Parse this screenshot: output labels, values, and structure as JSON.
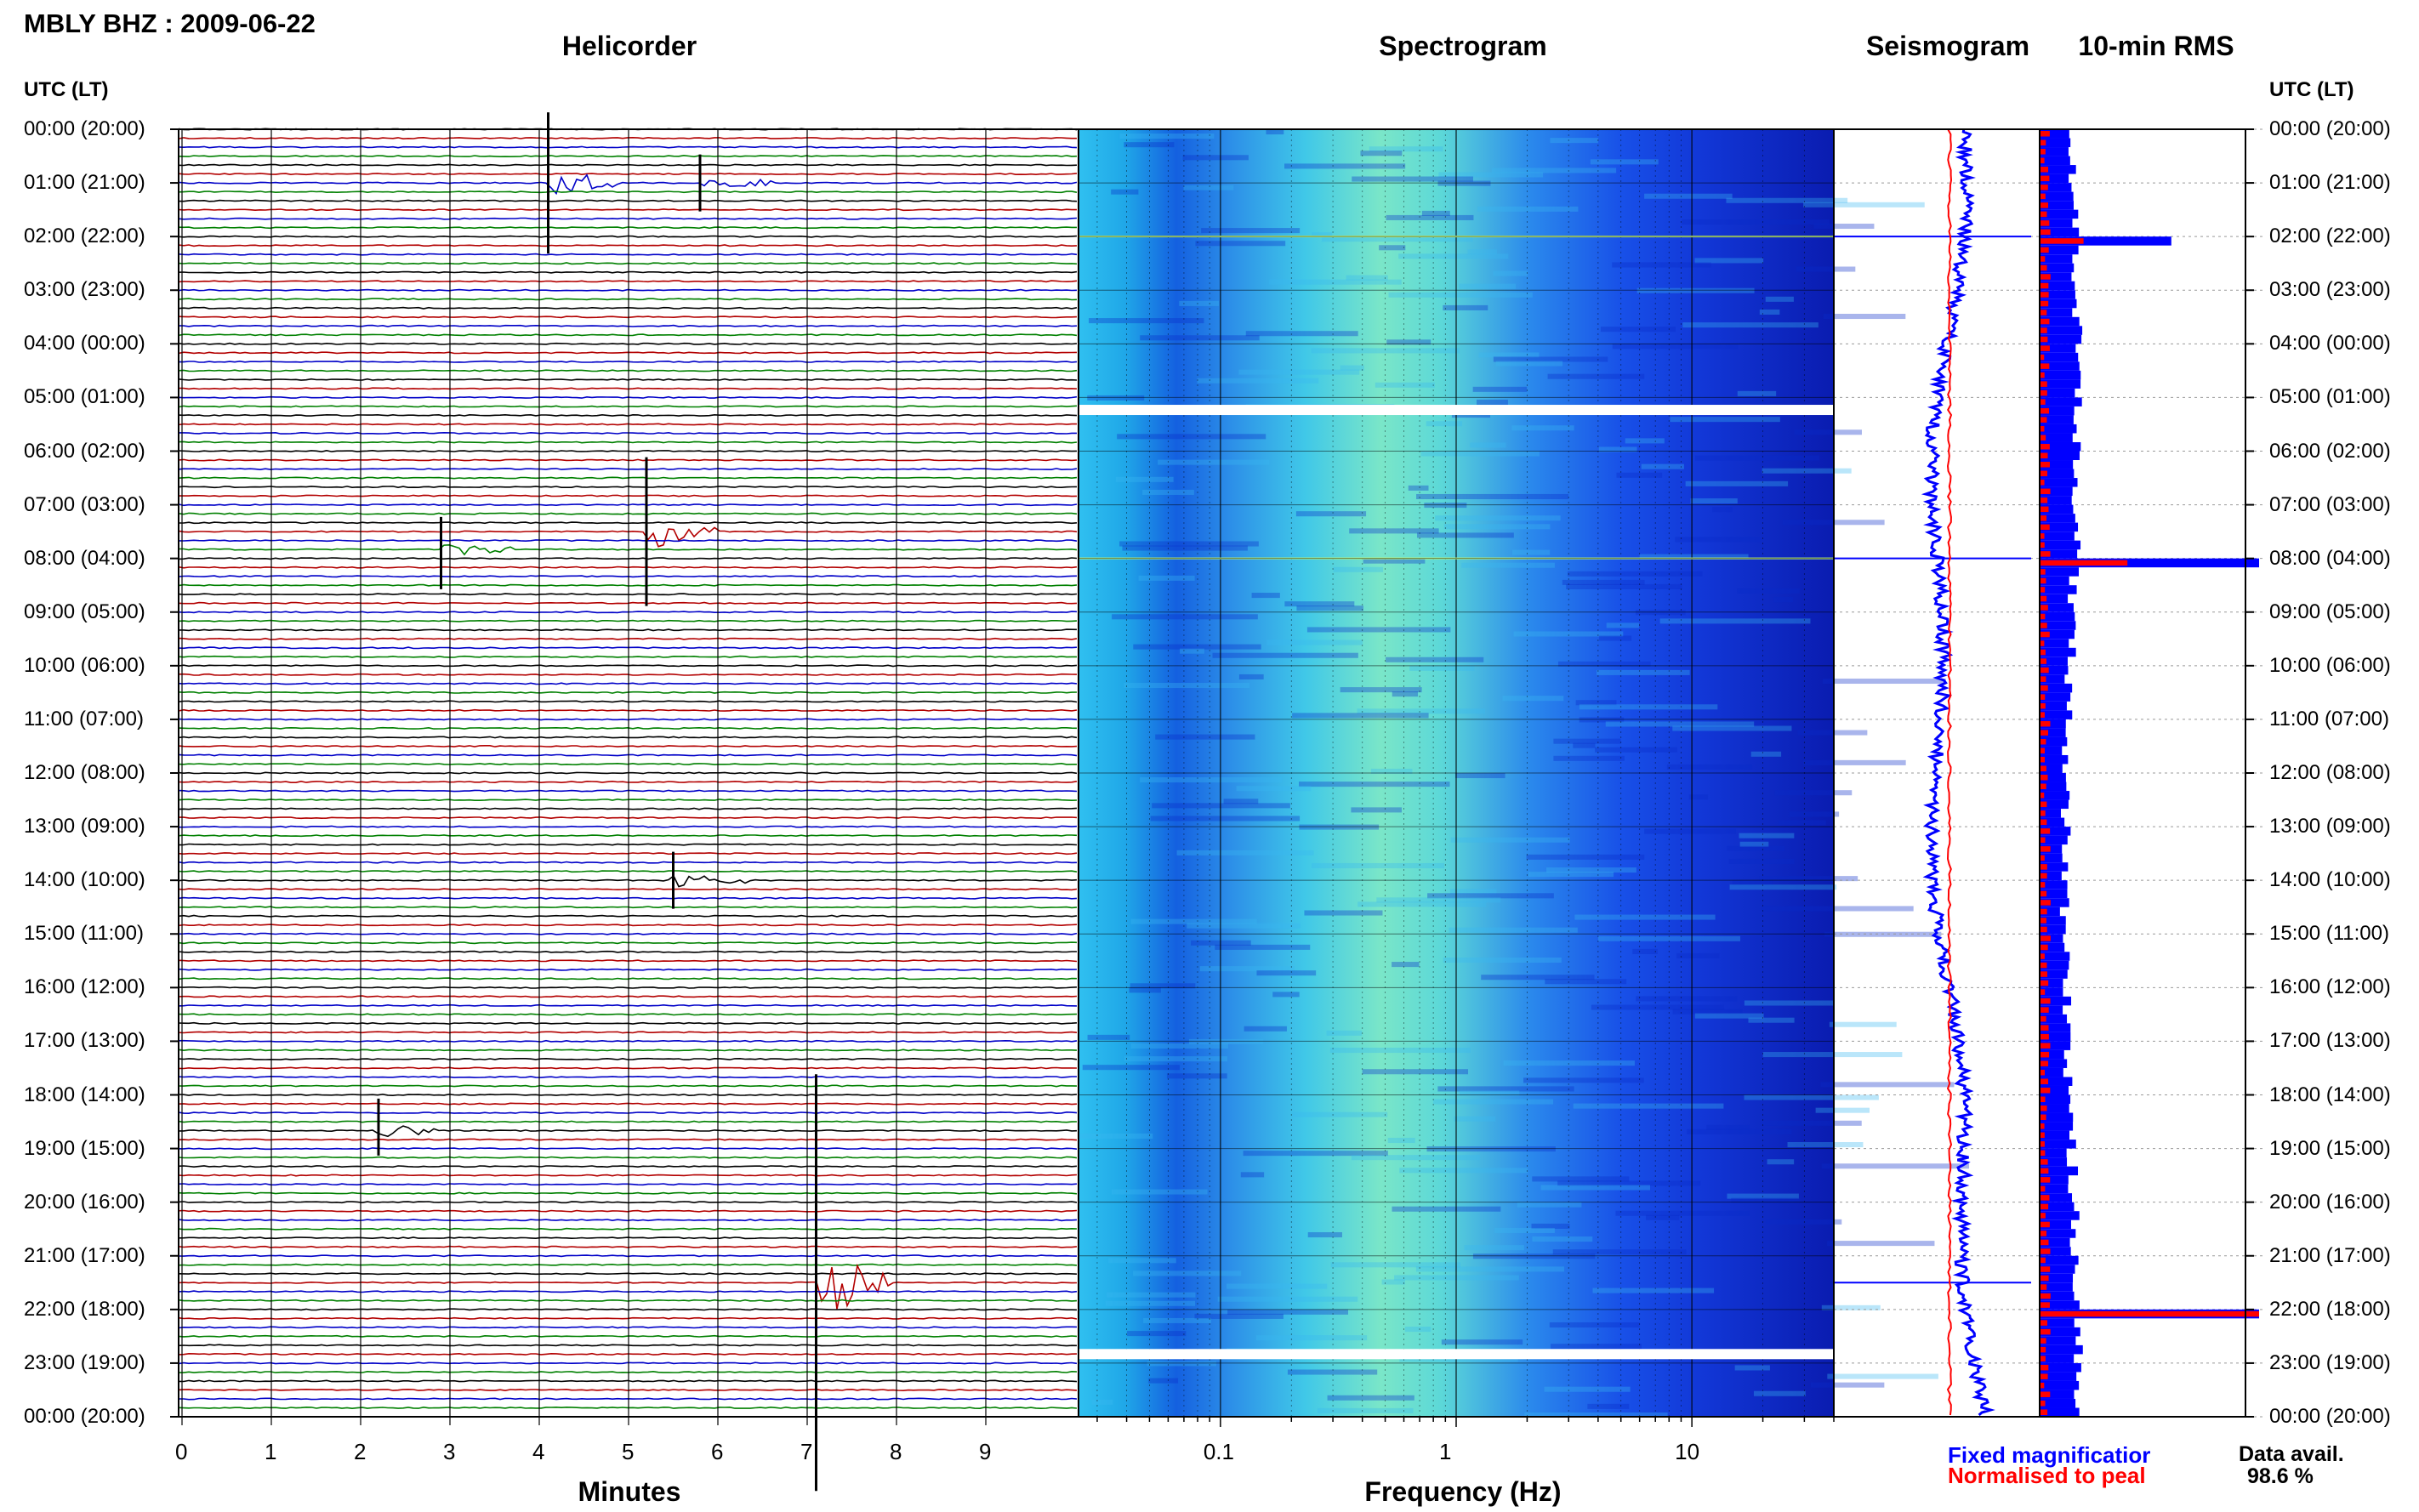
{
  "header": {
    "title": "MBLY BHZ : 2009-06-22",
    "helicorder_title": "Helicorder",
    "spectrogram_title": "Spectrogram",
    "seismogram_title": "Seismogram",
    "rms_title": "10-min RMS",
    "left_axis_header": "UTC (LT)",
    "right_axis_header": "UTC (LT)"
  },
  "footer": {
    "minutes_label": "Minutes",
    "frequency_label": "Frequency (Hz)",
    "legend_fixed": "Fixed magnificatior",
    "legend_normalised": "Normalised to peal",
    "data_avail_label": "Data avail.",
    "data_avail_value": "98.6 %"
  },
  "colors": {
    "trace_black": "#000000",
    "trace_red": "#b30000",
    "trace_blue": "#0000c8",
    "trace_green": "#008000",
    "fixed_magnification": "#0000ff",
    "normalised_to_peak": "#ff0000",
    "spectrogram_background": "#1030e0"
  },
  "chart_data": {
    "type": "heatmap",
    "time_labels": [
      "00:00 (20:00)",
      "01:00 (21:00)",
      "02:00 (22:00)",
      "03:00 (23:00)",
      "04:00 (00:00)",
      "05:00 (01:00)",
      "06:00 (02:00)",
      "07:00 (03:00)",
      "08:00 (04:00)",
      "09:00 (05:00)",
      "10:00 (06:00)",
      "11:00 (07:00)",
      "12:00 (08:00)",
      "13:00 (09:00)",
      "14:00 (10:00)",
      "15:00 (11:00)",
      "16:00 (12:00)",
      "17:00 (13:00)",
      "18:00 (14:00)",
      "19:00 (15:00)",
      "20:00 (16:00)",
      "21:00 (17:00)",
      "22:00 (18:00)",
      "23:00 (19:00)",
      "00:00 (20:00)"
    ],
    "helicorder": {
      "x_ticks": [
        "0",
        "1",
        "2",
        "3",
        "4",
        "5",
        "6",
        "7",
        "8",
        "9"
      ],
      "x_range": [
        0,
        10
      ],
      "traces_per_hour": 6,
      "trace_colors": [
        "trace_black",
        "trace_red",
        "trace_blue",
        "trace_green"
      ],
      "events": [
        {
          "hour": 1.0,
          "minute": 4.1,
          "amplitude": 1.4
        },
        {
          "hour": 1.0,
          "minute": 5.8,
          "amplitude": 0.3
        },
        {
          "hour": 7.5,
          "minute": 5.2,
          "amplitude": 1.5
        },
        {
          "hour": 7.9,
          "minute": 2.9,
          "amplitude": 0.5
        },
        {
          "hour": 14.0,
          "minute": 5.5,
          "amplitude": 0.3
        },
        {
          "hour": 18.6,
          "minute": 2.2,
          "amplitude": 0.3
        },
        {
          "hour": 21.5,
          "minute": 7.1,
          "amplitude": 5.0
        }
      ]
    },
    "spectrogram": {
      "x_ticks": [
        "0.1",
        "1",
        "10"
      ],
      "x_scale": "log",
      "x_range": [
        0.025,
        40
      ],
      "data_gaps_hour": [
        5.2,
        22.8
      ],
      "bright_lines_hour": [
        2.0,
        8.0
      ]
    },
    "seismogram": {
      "spikes_hour": [
        2.0,
        8.0,
        21.5
      ]
    },
    "rms": {
      "interval_minutes": 10,
      "peaks": [
        {
          "hour": 2.0,
          "fixed": 0.6,
          "normalised": 0.2
        },
        {
          "hour": 8.0,
          "fixed": 1.0,
          "normalised": 0.4
        },
        {
          "hour": 22.0,
          "fixed": 1.0,
          "normalised": 1.0
        }
      ]
    }
  }
}
